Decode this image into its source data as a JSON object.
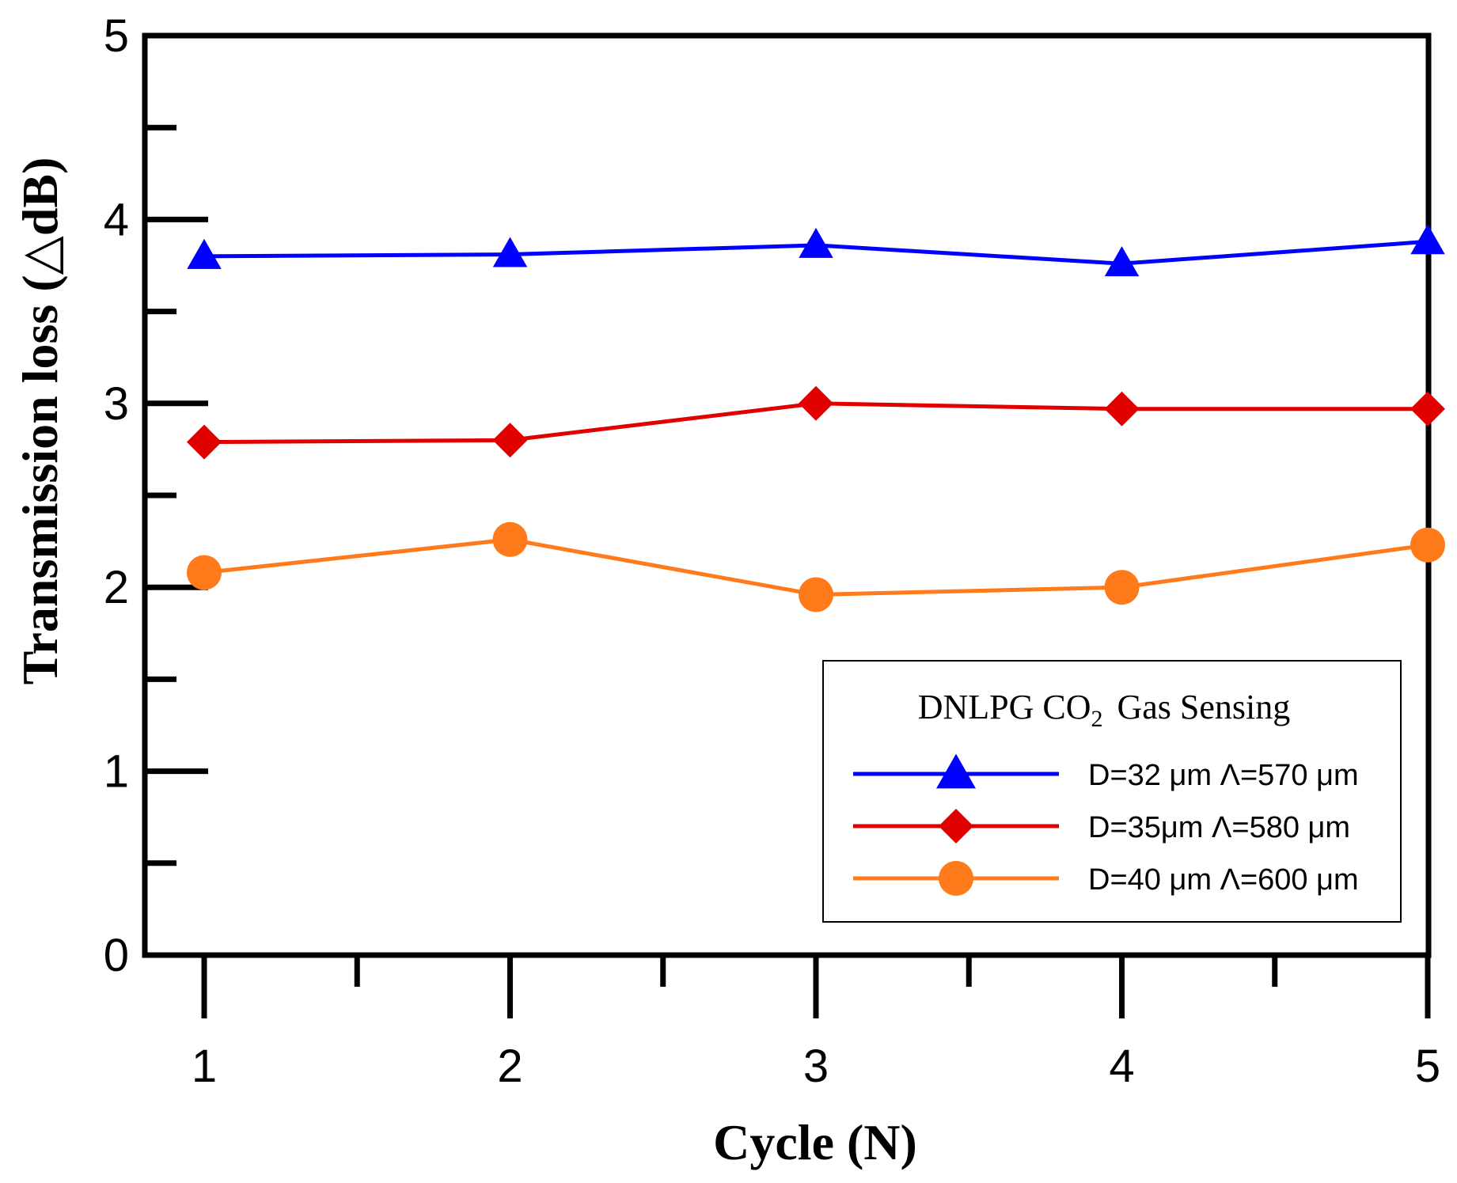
{
  "chart_data": {
    "type": "line",
    "title": "",
    "xlabel": "Cycle (N)",
    "ylabel": "Transmission loss (△dB)",
    "x": [
      1,
      2,
      3,
      4,
      5
    ],
    "xticks": [
      "1",
      "2",
      "3",
      "4",
      "5"
    ],
    "yticks": [
      "0",
      "1",
      "2",
      "3",
      "4",
      "5"
    ],
    "xlim": [
      0.8,
      5
    ],
    "ylim": [
      0,
      5
    ],
    "grid": false,
    "legend": {
      "title_main": "DNLPG CO",
      "title_sub": "2",
      "title_rest": "Gas Sensing",
      "placement": "bottom-right"
    },
    "series": [
      {
        "name": "D=32 μm Λ=570 μm",
        "color": "#0000ff",
        "marker": "triangle",
        "values": [
          3.8,
          3.81,
          3.86,
          3.76,
          3.88
        ]
      },
      {
        "name": "D=35μm  Λ=580 μm",
        "color": "#e00000",
        "marker": "diamond",
        "values": [
          2.79,
          2.8,
          3.0,
          2.97,
          2.97
        ]
      },
      {
        "name": "D=40 μm Λ=600 μm",
        "color": "#ff7a1a",
        "marker": "circle",
        "values": [
          2.08,
          2.26,
          1.96,
          2.0,
          2.23
        ]
      }
    ]
  }
}
